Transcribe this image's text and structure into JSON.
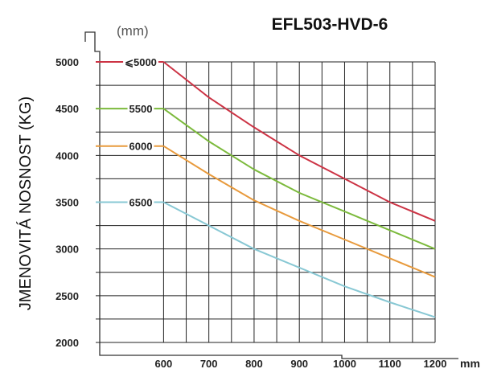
{
  "chart_data": {
    "type": "line",
    "title": "EFL503-HVD-6",
    "load_center_unit": "(mm)",
    "xlabel": "mm",
    "ylabel": "JMENOVITÁ NOSNOST (KG)",
    "xlim": [
      450,
      1200
    ],
    "ylim": [
      2000,
      5000
    ],
    "xticks": [
      "600",
      "700",
      "800",
      "900",
      "1000",
      "1100",
      "1200"
    ],
    "yticks": [
      "2000",
      "2500",
      "3000",
      "3500",
      "4000",
      "4500",
      "5000"
    ],
    "grid": true,
    "series": [
      {
        "name": "⩽5000",
        "color": "#cc3344",
        "x": [
          600,
          700,
          800,
          900,
          1000,
          1100,
          1200
        ],
        "y": [
          5000,
          4620,
          4300,
          4000,
          3750,
          3500,
          3300
        ]
      },
      {
        "name": "5500",
        "color": "#7cba3c",
        "x": [
          600,
          700,
          800,
          900,
          1000,
          1100,
          1200
        ],
        "y": [
          4500,
          4150,
          3850,
          3600,
          3400,
          3200,
          3000
        ]
      },
      {
        "name": "6000",
        "color": "#e89a3c",
        "x": [
          600,
          700,
          800,
          900,
          1000,
          1100,
          1200
        ],
        "y": [
          4100,
          3800,
          3520,
          3300,
          3100,
          2900,
          2700
        ]
      },
      {
        "name": "6500",
        "color": "#88c8d4",
        "x": [
          600,
          700,
          800,
          900,
          1000,
          1100,
          1200
        ],
        "y": [
          3500,
          3250,
          3000,
          2800,
          2600,
          2430,
          2270
        ]
      }
    ]
  }
}
